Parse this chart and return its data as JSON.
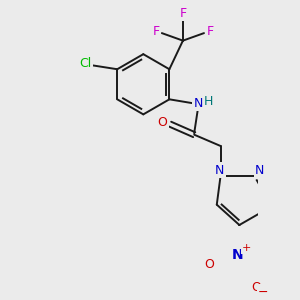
{
  "background_color": "#ebebeb",
  "bond_color": "#1a1a1a",
  "colors": {
    "F": "#cc00cc",
    "Cl": "#00bb00",
    "N": "#0000cc",
    "O": "#cc0000",
    "NH_N": "#0000cc",
    "NH_H": "#007777",
    "C": "#1a1a1a"
  }
}
